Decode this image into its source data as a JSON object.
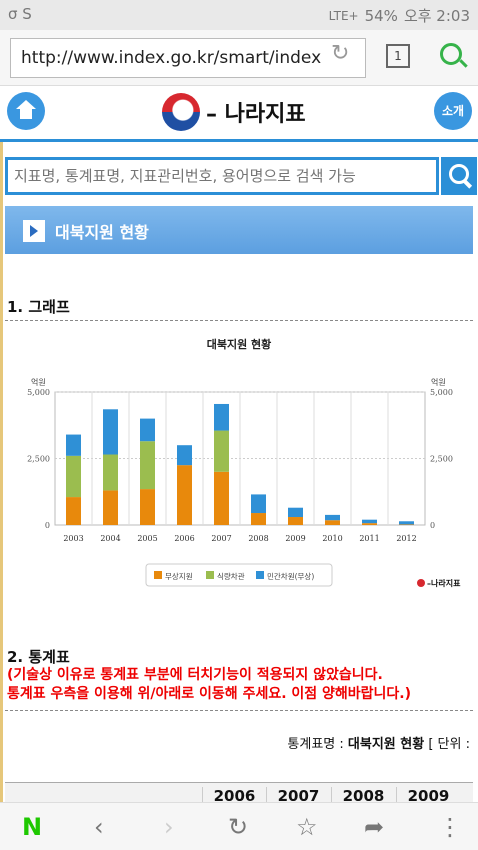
{
  "status_bar": {
    "left_icons": "σ S",
    "battery": "54%",
    "time": "오후 2:03",
    "signal": "LTE+"
  },
  "browser": {
    "url": "http://www.index.go.kr/smart/index",
    "tab_count": "1"
  },
  "header": {
    "logo_text": "나라지표",
    "intro_label": "소개"
  },
  "search": {
    "placeholder": "지표명, 통계표명, 지표관리번호, 용어명으로 검색 가능"
  },
  "page": {
    "title": "대북지원 현황"
  },
  "sections": {
    "graph_heading": "1. 그래프",
    "table_heading": "2. 통계표"
  },
  "notice": {
    "line1": "(기술상 이유로 통계표 부분에 터치기능이 적용되지 않았습니다.",
    "line2": "통계표 우측을 이용해 위/아래로 이동해 주세요. 이점 양해바랍니다.)"
  },
  "table": {
    "name_label": "통계표명 : ",
    "name_value": "대북지원 현황",
    "unit_label": " [ 단위 :",
    "years": [
      "2006",
      "2007",
      "2008",
      "2009"
    ]
  },
  "chart_data": {
    "type": "bar",
    "stacked": true,
    "title": "대북지원 현황",
    "ylabel_left": "억원",
    "ylabel_right": "억원",
    "ylim": [
      0,
      5000
    ],
    "yticks": [
      "0",
      "2,500",
      "5,000"
    ],
    "categories": [
      "2003",
      "2004",
      "2005",
      "2006",
      "2007",
      "2008",
      "2009",
      "2010",
      "2011",
      "2012"
    ],
    "series": [
      {
        "name": "무상지원",
        "color": "#e8890c",
        "values": [
          1050,
          1300,
          1350,
          2250,
          2000,
          450,
          300,
          180,
          70,
          20
        ]
      },
      {
        "name": "식량차관",
        "color": "#9bbd4f",
        "values": [
          1550,
          1350,
          1800,
          0,
          1550,
          0,
          0,
          0,
          0,
          0
        ]
      },
      {
        "name": "민간차원(무상)",
        "color": "#2f90d6",
        "values": [
          800,
          1700,
          850,
          750,
          1000,
          700,
          350,
          200,
          130,
          120
        ]
      }
    ],
    "legend_position": "bottom",
    "watermark": "나라지표"
  },
  "colors": {
    "accent": "#2b8fd7",
    "notice": "#e00000"
  }
}
